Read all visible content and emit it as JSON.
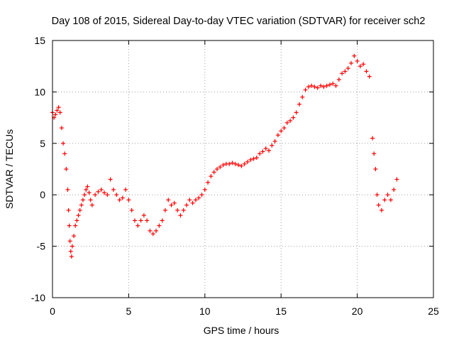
{
  "chart_data": {
    "type": "scatter",
    "title": "Day 108 of 2015, Sidereal Day-to-day VTEC variation (SDTVAR) for receiver sch2",
    "xlabel": "GPS time / hours",
    "ylabel": "SDTVAR / TECUs",
    "xlim": [
      0,
      25
    ],
    "ylim": [
      -10,
      15
    ],
    "xticks": [
      0,
      5,
      10,
      15,
      20,
      25
    ],
    "yticks": [
      -10,
      -5,
      0,
      5,
      10,
      15
    ],
    "grid": true,
    "marker": "+",
    "color": "#ff0000",
    "series": [
      {
        "name": "SDTVAR",
        "x": [
          0.0,
          0.1,
          0.2,
          0.3,
          0.4,
          0.5,
          0.6,
          0.7,
          0.8,
          0.9,
          1.0,
          1.05,
          1.1,
          1.15,
          1.2,
          1.25,
          1.3,
          1.4,
          1.5,
          1.6,
          1.7,
          1.8,
          1.9,
          2.0,
          2.1,
          2.2,
          2.3,
          2.4,
          2.5,
          2.6,
          2.8,
          3.0,
          3.2,
          3.4,
          3.6,
          3.8,
          4.0,
          4.2,
          4.4,
          4.6,
          4.8,
          5.0,
          5.2,
          5.4,
          5.6,
          5.8,
          6.0,
          6.2,
          6.4,
          6.6,
          6.8,
          7.0,
          7.2,
          7.4,
          7.6,
          7.8,
          8.0,
          8.2,
          8.4,
          8.6,
          8.8,
          9.0,
          9.2,
          9.4,
          9.6,
          9.8,
          10.0,
          10.2,
          10.4,
          10.6,
          10.8,
          11.0,
          11.2,
          11.4,
          11.6,
          11.8,
          12.0,
          12.2,
          12.4,
          12.6,
          12.8,
          13.0,
          13.2,
          13.4,
          13.6,
          13.8,
          14.0,
          14.2,
          14.4,
          14.6,
          14.8,
          15.0,
          15.2,
          15.4,
          15.6,
          15.8,
          16.0,
          16.2,
          16.4,
          16.6,
          16.8,
          17.0,
          17.2,
          17.4,
          17.6,
          17.8,
          18.0,
          18.2,
          18.4,
          18.6,
          18.8,
          19.0,
          19.2,
          19.4,
          19.6,
          19.8,
          20.0,
          20.2,
          20.4,
          20.6,
          20.8,
          21.0,
          21.1,
          21.2,
          21.3,
          21.4,
          21.6,
          21.8,
          22.0,
          22.2,
          22.4,
          22.6
        ],
        "y": [
          8.0,
          7.5,
          7.8,
          8.2,
          8.5,
          8.0,
          6.5,
          5.0,
          4.0,
          2.5,
          0.5,
          -1.5,
          -3.0,
          -4.5,
          -5.5,
          -6.0,
          -5.0,
          -4.0,
          -3.0,
          -2.5,
          -2.0,
          -1.5,
          -1.0,
          -0.5,
          0.0,
          0.5,
          0.8,
          0.2,
          -0.5,
          -1.0,
          0.0,
          0.3,
          0.5,
          0.2,
          0.0,
          1.5,
          0.5,
          0.0,
          -0.5,
          -0.3,
          0.5,
          -0.5,
          -1.5,
          -2.5,
          -3.0,
          -2.5,
          -2.0,
          -2.5,
          -3.5,
          -3.8,
          -3.5,
          -3.0,
          -2.5,
          -1.5,
          -0.5,
          -1.0,
          -0.8,
          -1.5,
          -2.0,
          -1.5,
          -1.0,
          -0.5,
          -0.8,
          -0.5,
          -0.3,
          0.0,
          0.5,
          1.2,
          1.8,
          2.2,
          2.5,
          2.7,
          2.9,
          3.0,
          3.0,
          3.1,
          3.0,
          2.9,
          2.8,
          3.0,
          3.2,
          3.4,
          3.5,
          3.6,
          4.0,
          4.2,
          4.5,
          4.3,
          4.8,
          5.2,
          5.8,
          6.2,
          6.5,
          7.0,
          7.2,
          7.5,
          8.0,
          8.8,
          9.5,
          10.2,
          10.5,
          10.6,
          10.5,
          10.4,
          10.6,
          10.5,
          10.6,
          10.7,
          10.8,
          10.6,
          11.2,
          11.8,
          12.0,
          12.3,
          12.8,
          13.5,
          13.0,
          12.5,
          12.7,
          12.0,
          11.5,
          5.5,
          4.0,
          2.5,
          0.0,
          -1.0,
          -1.5,
          -0.5,
          0.0,
          -0.5,
          0.5,
          1.5
        ]
      }
    ]
  }
}
